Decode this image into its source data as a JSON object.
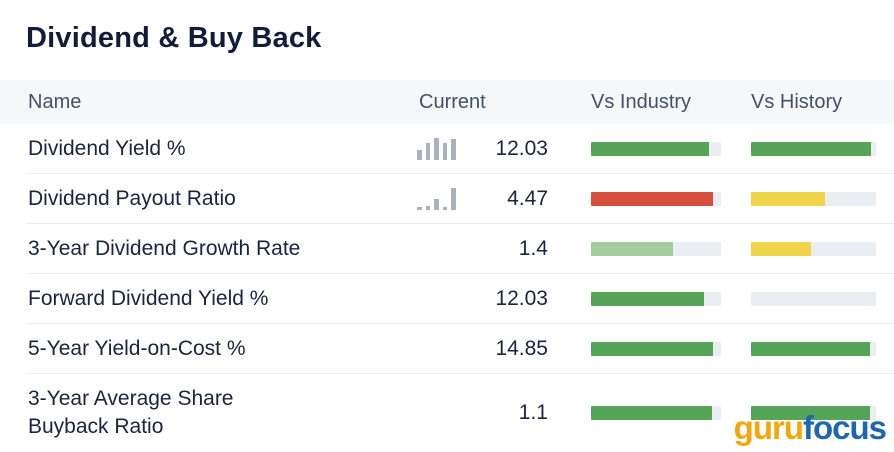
{
  "title": "Dividend & Buy Back",
  "table": {
    "columns": [
      "Name",
      "Current",
      "Vs Industry",
      "Vs History"
    ],
    "rows": [
      {
        "name": "Dividend Yield %",
        "current": "12.03",
        "sparkline": [
          10,
          17,
          22,
          17,
          21
        ],
        "vs_industry": {
          "percent": 91,
          "color": "green"
        },
        "vs_history": {
          "percent": 96,
          "color": "green"
        }
      },
      {
        "name": "Dividend Payout Ratio",
        "current": "4.47",
        "sparkline": [
          3,
          4,
          11,
          3,
          22
        ],
        "vs_industry": {
          "percent": 94,
          "color": "red"
        },
        "vs_history": {
          "percent": 59,
          "color": "yellow"
        }
      },
      {
        "name": "3-Year Dividend Growth Rate",
        "current": "1.4",
        "sparkline": [],
        "vs_industry": {
          "percent": 63,
          "color": "light_green"
        },
        "vs_history": {
          "percent": 48,
          "color": "yellow"
        }
      },
      {
        "name": "Forward Dividend Yield %",
        "current": "12.03",
        "sparkline": [],
        "vs_industry": {
          "percent": 87,
          "color": "green"
        },
        "vs_history": {
          "percent": 0,
          "color": "green"
        }
      },
      {
        "name": "5-Year Yield-on-Cost %",
        "current": "14.85",
        "sparkline": [],
        "vs_industry": {
          "percent": 94,
          "color": "green"
        },
        "vs_history": {
          "percent": 95,
          "color": "green"
        }
      },
      {
        "name": "3-Year Average Share\nBuyback Ratio",
        "current": "1.1",
        "sparkline": [],
        "vs_industry": {
          "percent": 93,
          "color": "green"
        },
        "vs_history": {
          "percent": 95,
          "color": "green"
        }
      }
    ]
  },
  "colors": {
    "green": "#55A458",
    "light_green": "#A3CC9E",
    "red": "#D7503E",
    "yellow": "#F0D44A",
    "bar_track": "#EAEDF1",
    "sparkline": "#A8B1BF"
  },
  "logo": {
    "part1": "guru",
    "part2": "focus",
    "part1_color": "#F5A60B",
    "part2_color": "#1E67AE"
  }
}
